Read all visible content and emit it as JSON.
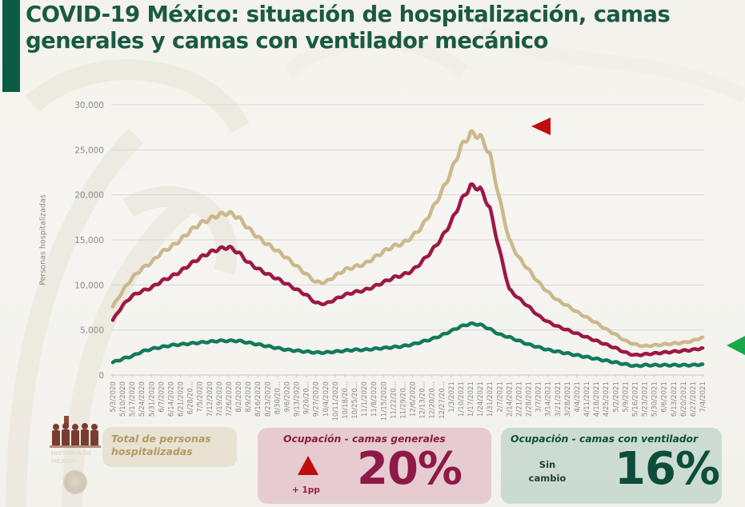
{
  "title": "COVID-19 México: situación de hospitalización, camas generales y camas con ventilador mecánico",
  "colors": {
    "accent_bar": "#0b5c45",
    "title": "#1a5a44",
    "total_series": "#cbb98c",
    "general_series": "#9c1847",
    "ventilator_series": "#137a5c",
    "red_marker": "#c00d0d",
    "green_marker": "#18a84a",
    "gridline": "#d6d6d6",
    "tick_text": "#8a8a8a"
  },
  "chart_data": {
    "type": "line",
    "title": "COVID-19 México: situación de hospitalización, camas generales y camas con ventilador mecánico",
    "xlabel": "",
    "ylabel": "Personas hospitalizadas",
    "ylim": [
      0,
      30000
    ],
    "yticks": [
      0,
      5000,
      10000,
      15000,
      20000,
      25000,
      30000
    ],
    "ytick_labels": [
      "0",
      "5,000",
      "10,000",
      "15,000",
      "20,000",
      "25,000",
      "30,000"
    ],
    "grid": true,
    "legend": "none (series identified by cards below the chart)",
    "x": [
      "5/3/2020",
      "5/10/2020",
      "5/17/2020",
      "5/24/2020",
      "5/31/2020",
      "6/7/2020",
      "6/14/2020",
      "6/21/2020",
      "6/28/20...",
      "7/5/2020",
      "7/12/2020",
      "7/19/2020",
      "7/26/2020",
      "8/2/2020",
      "8/9/2020",
      "8/16/2020",
      "8/23/2020",
      "8/30/20...",
      "9/6/2020",
      "9/13/2020",
      "9/20/20...",
      "9/27/2020",
      "10/4/2020",
      "10/11/2020",
      "10/18/20...",
      "10/25/20...",
      "11/1/2020",
      "11/8/2020",
      "11/15/2020",
      "11/22/20...",
      "11/29/20...",
      "12/6/2020",
      "12/13/20...",
      "12/20/20...",
      "12/27/20...",
      "1/3/2021",
      "1/10/2021",
      "1/17/2021",
      "1/24/2021",
      "1/31/2021",
      "2/7/2021",
      "2/14/2021",
      "2/21/2021",
      "2/28/2021",
      "3/7/2021",
      "3/14/2021",
      "3/21/2021",
      "3/28/2021",
      "4/4/2021",
      "4/11/2021",
      "4/18/2021",
      "4/25/2021",
      "5/2/2021",
      "5/9/2021",
      "5/16/2021",
      "5/23/2021",
      "5/30/2021",
      "6/6/2021",
      "6/13/2021",
      "6/20/2021",
      "6/27/2021",
      "7/4/2021"
    ],
    "series": [
      {
        "name": "Total de personas hospitalizadas",
        "color": "#cbb98c",
        "values": [
          7600,
          9300,
          10800,
          11800,
          12500,
          13600,
          14200,
          15000,
          16000,
          16800,
          17300,
          17800,
          18000,
          17500,
          16300,
          15300,
          14500,
          13800,
          13000,
          12100,
          11200,
          10300,
          10300,
          11000,
          11700,
          12000,
          12300,
          13000,
          13700,
          14300,
          14600,
          15400,
          16500,
          18300,
          20300,
          22600,
          25300,
          26800,
          26500,
          24500,
          19500,
          15000,
          13000,
          11700,
          10300,
          9200,
          8300,
          7700,
          7000,
          6400,
          5800,
          5100,
          4500,
          3800,
          3400,
          3200,
          3300,
          3400,
          3500,
          3600,
          3800,
          4200
        ]
      },
      {
        "name": "Ocupación - camas generales",
        "color": "#9c1847",
        "values": [
          6100,
          7700,
          8800,
          9300,
          9700,
          10400,
          10900,
          11500,
          12300,
          13000,
          13600,
          14000,
          14200,
          13600,
          12500,
          11800,
          11200,
          10700,
          10100,
          9500,
          8900,
          8000,
          7900,
          8400,
          8900,
          9200,
          9400,
          9800,
          10300,
          10800,
          11100,
          11600,
          12600,
          13800,
          15200,
          17000,
          19300,
          21000,
          20700,
          18500,
          13800,
          9500,
          8500,
          7600,
          6600,
          5900,
          5400,
          5000,
          4600,
          4200,
          3800,
          3400,
          3000,
          2500,
          2200,
          2300,
          2400,
          2500,
          2600,
          2700,
          2800,
          3000
        ]
      },
      {
        "name": "Ocupación - camas con ventilador",
        "color": "#137a5c",
        "values": [
          1400,
          1800,
          2100,
          2600,
          2900,
          3100,
          3300,
          3400,
          3500,
          3600,
          3700,
          3800,
          3800,
          3800,
          3600,
          3400,
          3200,
          3000,
          2800,
          2700,
          2600,
          2500,
          2500,
          2600,
          2700,
          2800,
          2800,
          2900,
          3000,
          3100,
          3200,
          3400,
          3700,
          4000,
          4400,
          4900,
          5400,
          5700,
          5600,
          5100,
          4500,
          4200,
          3800,
          3400,
          3100,
          2800,
          2600,
          2400,
          2200,
          2000,
          1800,
          1600,
          1400,
          1200,
          1000,
          1100,
          1100,
          1100,
          1100,
          1100,
          1100,
          1200
        ]
      }
    ],
    "annotations": [
      {
        "type": "red-left-pointing-triangle",
        "position": "upper right of chart, near 27,000 level"
      },
      {
        "type": "green-left-pointing-triangle",
        "position": "right edge, near 3,000 level"
      }
    ]
  },
  "cards": {
    "total": {
      "label": "Total de personas hospitalizadas"
    },
    "general": {
      "title": "Ocupación - camas generales",
      "trend_icon": "up-triangle",
      "delta": "+ 1pp",
      "value": "20%"
    },
    "ventilator": {
      "title": "Ocupación - camas con ventilador",
      "status": "Sin cambio",
      "value": "16%"
    }
  },
  "logo": {
    "subtitle": "HISTORIA DE MÉXICO"
  }
}
